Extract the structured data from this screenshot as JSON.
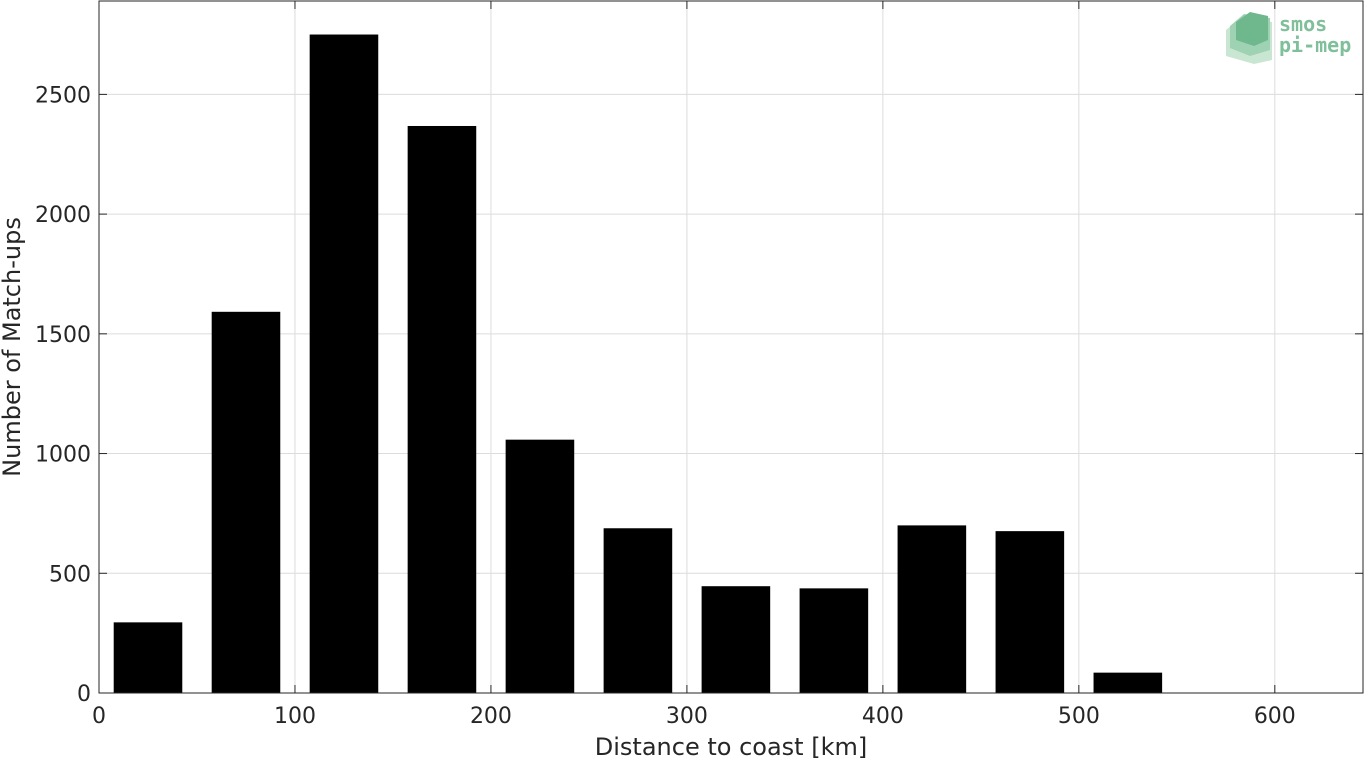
{
  "chart_data": {
    "type": "bar",
    "title": "",
    "xlabel": "Distance to coast [km]",
    "ylabel": "Number of Match-ups",
    "x": [
      25,
      75,
      125,
      175,
      225,
      275,
      325,
      375,
      425,
      475,
      525
    ],
    "values": [
      295,
      1592,
      2750,
      2368,
      1058,
      688,
      446,
      437,
      700,
      676,
      85
    ],
    "bin_width": 50,
    "xlim": [
      0,
      645
    ],
    "ylim": [
      0,
      2890
    ],
    "xticks": [
      "0",
      "100",
      "200",
      "300",
      "400",
      "500",
      "600"
    ],
    "yticks": [
      "0",
      "500",
      "1000",
      "1500",
      "2000",
      "2500"
    ],
    "grid": true,
    "bar_color": "#000000"
  },
  "logo": {
    "line1": "smos",
    "line2": "pi-mep",
    "color": "#7fbf9a"
  }
}
